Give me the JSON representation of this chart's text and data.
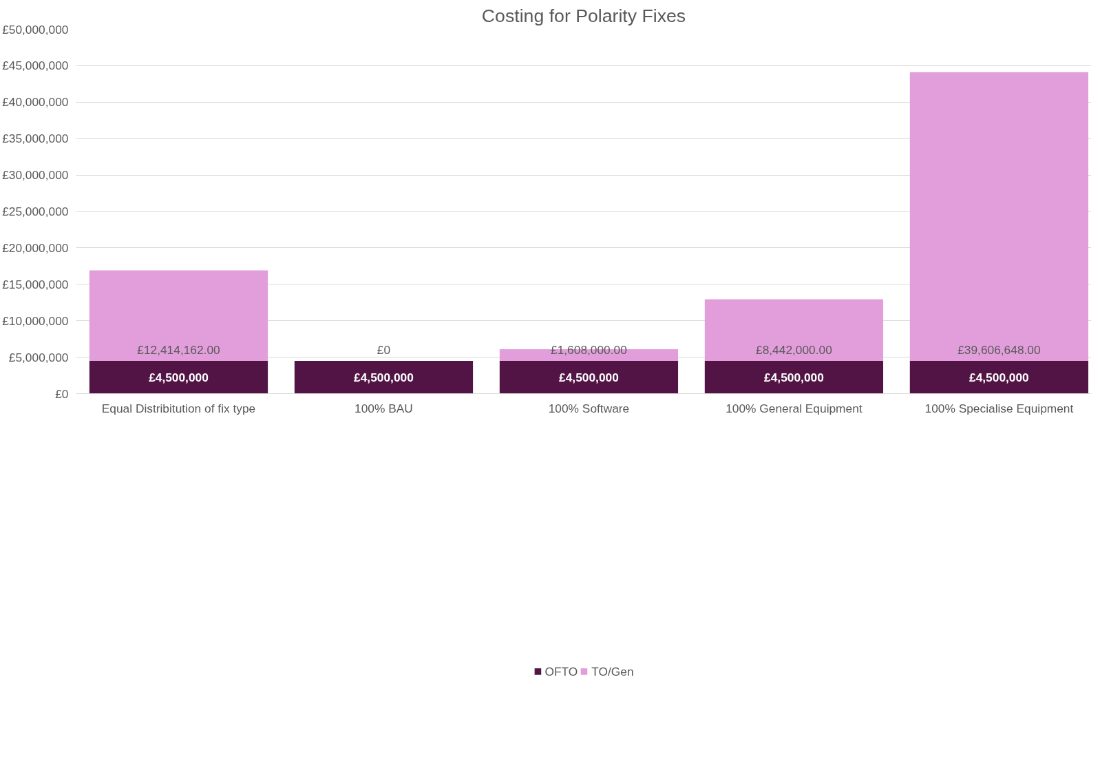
{
  "chart_data": {
    "type": "bar",
    "title": "Costing for Polarity Fixes",
    "stacked": true,
    "categories": [
      "Equal Distribitution of fix type",
      "100% BAU",
      "100% Software",
      "100% General Equipment",
      "100% Specialise Equipment"
    ],
    "series": [
      {
        "name": "OFTO",
        "color": "#521445",
        "values": [
          4500000,
          4500000,
          4500000,
          4500000,
          4500000
        ],
        "value_labels": [
          "£4,500,000",
          "£4,500,000",
          "£4,500,000",
          "£4,500,000",
          "£4,500,000"
        ]
      },
      {
        "name": "TO/Gen",
        "color": "#e29edb",
        "values": [
          12414162,
          0,
          1608000,
          8442000,
          39606648
        ],
        "value_labels": [
          "£12,414,162.00",
          "£0",
          "£1,608,000.00",
          "£8,442,000.00",
          "£39,606,648.00"
        ]
      }
    ],
    "ylim": [
      0,
      50000000
    ],
    "yticks": [
      {
        "value": 0,
        "label": "£0"
      },
      {
        "value": 5000000,
        "label": "£5,000,000"
      },
      {
        "value": 10000000,
        "label": "£10,000,000"
      },
      {
        "value": 15000000,
        "label": "£15,000,000"
      },
      {
        "value": 20000000,
        "label": "£20,000,000"
      },
      {
        "value": 25000000,
        "label": "£25,000,000"
      },
      {
        "value": 30000000,
        "label": "£30,000,000"
      },
      {
        "value": 35000000,
        "label": "£35,000,000"
      },
      {
        "value": 40000000,
        "label": "£40,000,000"
      },
      {
        "value": 45000000,
        "label": "£45,000,000"
      },
      {
        "value": 50000000,
        "label": "£50,000,000"
      }
    ],
    "grid": "y",
    "legend": "bottom"
  }
}
